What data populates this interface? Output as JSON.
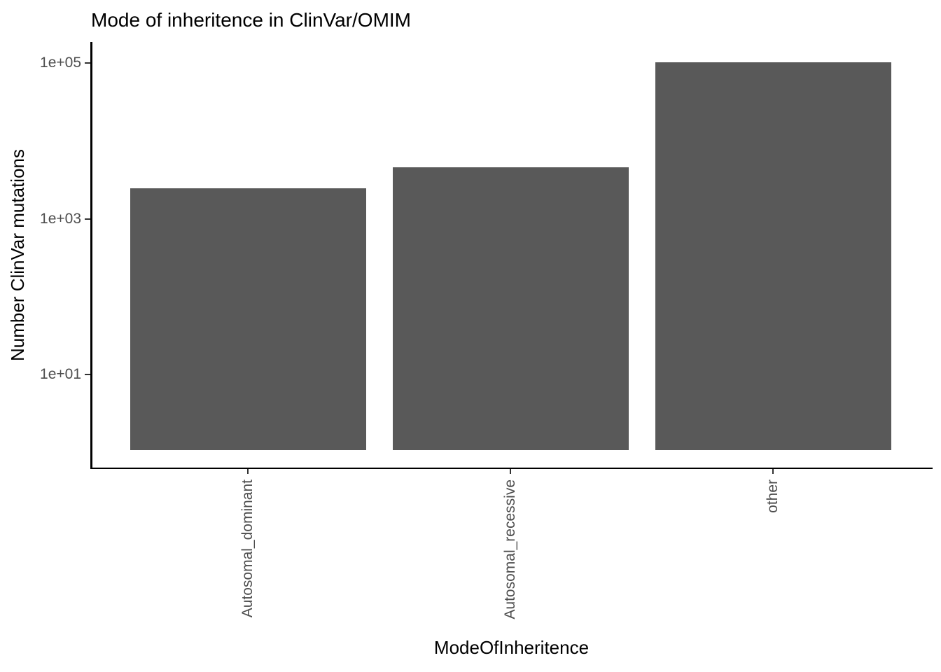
{
  "chart_data": {
    "type": "bar",
    "title": "Mode of inheritence in ClinVar/OMIM",
    "xlabel": "ModeOfInheritence",
    "ylabel": "Number ClinVar mutations",
    "categories": [
      "Autosomal_dominant",
      "Autosomal_recessive",
      "other"
    ],
    "values": [
      2470,
      4600,
      102000
    ],
    "y_scale": "log10",
    "y_ticks": [
      {
        "label": "1e+05",
        "value": 100000
      },
      {
        "label": "1e+03",
        "value": 1000
      },
      {
        "label": "1e+01",
        "value": 10
      }
    ],
    "ylim_log10": [
      -0.2,
      5.27
    ],
    "bar_baseline_value": 1,
    "bar_color": "#595959",
    "axis_color": "#000000",
    "tick_color": "#333333",
    "tick_label_color": "#4d4d4d",
    "grid": false,
    "legend_position": "none"
  }
}
